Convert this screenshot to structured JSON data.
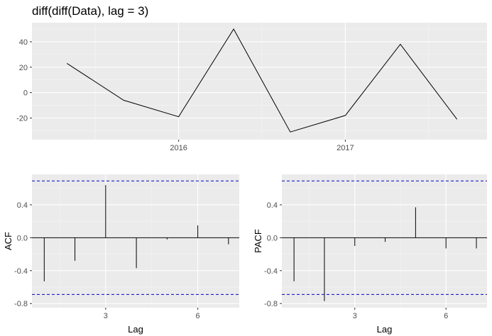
{
  "colors": {
    "panel_bg": "#ebebeb",
    "grid_major": "#ffffff",
    "grid_minor": "#f5f5f5",
    "line": "#000000",
    "bound": "#0000cc",
    "tick_text": "#4d4d4d",
    "axis_title": "#000000"
  },
  "chart_data": [
    {
      "type": "line",
      "title": "diff(diff(Data), lag = 3)",
      "xlabel": "",
      "ylabel": "",
      "x": [
        2015.33,
        2015.67,
        2016.0,
        2016.33,
        2016.67,
        2017.0,
        2017.33,
        2017.67
      ],
      "values": [
        23,
        -6,
        -19,
        50,
        -31,
        -18,
        38,
        -21
      ],
      "xlim": [
        2015.12,
        2017.85
      ],
      "ylim": [
        -37,
        55
      ],
      "x_ticks": [
        2016,
        2017
      ],
      "x_tick_labels": [
        "2016",
        "2017"
      ],
      "y_ticks": [
        -20,
        0,
        20,
        40
      ],
      "y_tick_labels": [
        "-20",
        "0",
        "20",
        "40"
      ],
      "grid": true
    },
    {
      "type": "bar",
      "title": "",
      "xlabel": "Lag",
      "ylabel": "ACF",
      "lags": [
        1,
        2,
        3,
        4,
        5,
        6,
        7
      ],
      "values": [
        -0.53,
        -0.28,
        0.64,
        -0.37,
        -0.02,
        0.15,
        -0.08
      ],
      "bounds": [
        0.69,
        -0.69
      ],
      "xlim": [
        0.6,
        7.35
      ],
      "ylim": [
        -0.85,
        0.77
      ],
      "x_ticks": [
        3,
        6
      ],
      "x_tick_labels": [
        "3",
        "6"
      ],
      "y_ticks": [
        -0.8,
        -0.4,
        0.0,
        0.4
      ],
      "y_tick_labels": [
        "-0.8",
        "-0.4",
        "0.0",
        "0.4"
      ],
      "grid": true
    },
    {
      "type": "bar",
      "title": "",
      "xlabel": "Lag",
      "ylabel": "PACF",
      "lags": [
        1,
        2,
        3,
        4,
        5,
        6,
        7
      ],
      "values": [
        -0.53,
        -0.77,
        -0.1,
        -0.05,
        0.37,
        -0.13,
        -0.13
      ],
      "bounds": [
        0.69,
        -0.69
      ],
      "xlim": [
        0.6,
        7.35
      ],
      "ylim": [
        -0.85,
        0.77
      ],
      "x_ticks": [
        3,
        6
      ],
      "x_tick_labels": [
        "3",
        "6"
      ],
      "y_ticks": [
        -0.8,
        -0.4,
        0.0,
        0.4
      ],
      "y_tick_labels": [
        "-0.8",
        "-0.4",
        "0.0",
        "0.4"
      ],
      "grid": true
    }
  ]
}
